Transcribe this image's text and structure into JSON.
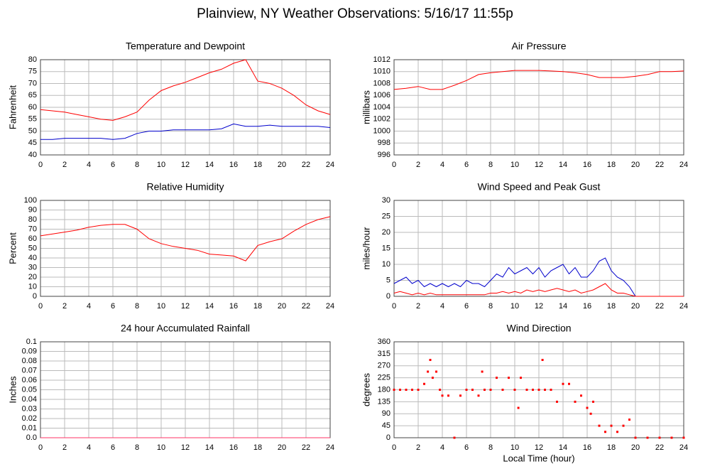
{
  "title": "Plainview, NY Weather Observations: 5/16/17 11:55p",
  "chart_data": [
    {
      "type": "line",
      "title": "Temperature and Dewpoint",
      "ylabel": "Fahrenheit",
      "x": [
        0,
        1,
        2,
        3,
        4,
        5,
        6,
        7,
        8,
        9,
        10,
        11,
        12,
        13,
        14,
        15,
        16,
        17,
        18,
        19,
        20,
        21,
        22,
        23,
        24
      ],
      "series": [
        {
          "color": "#ff0000",
          "values": [
            59,
            58.5,
            58,
            57,
            56,
            55,
            54.5,
            56,
            58,
            63,
            67,
            69,
            70.5,
            72.5,
            74.5,
            76,
            78.5,
            80,
            71,
            70,
            68,
            65,
            61,
            58.5,
            57
          ]
        },
        {
          "color": "#0000cc",
          "values": [
            46.5,
            46.5,
            47,
            47,
            47,
            47,
            46.5,
            47,
            49,
            50,
            50,
            50.5,
            50.5,
            50.5,
            50.5,
            51,
            53,
            52,
            52,
            52.5,
            52,
            52,
            52,
            52,
            51.5
          ]
        }
      ],
      "xlim": [
        0,
        24
      ],
      "xticks": [
        0,
        2,
        4,
        6,
        8,
        10,
        12,
        14,
        16,
        18,
        20,
        22,
        24
      ],
      "ylim": [
        40,
        80
      ],
      "yticks": [
        40,
        45,
        50,
        55,
        60,
        65,
        70,
        75,
        80
      ],
      "grid": true
    },
    {
      "type": "line",
      "title": "Air Pressure",
      "ylabel": "millibars",
      "x": [
        0,
        1,
        2,
        3,
        4,
        5,
        6,
        7,
        8,
        9,
        10,
        11,
        12,
        13,
        14,
        15,
        16,
        17,
        18,
        19,
        20,
        21,
        22,
        23,
        24
      ],
      "series": [
        {
          "color": "#ff0000",
          "values": [
            1007,
            1007.2,
            1007.5,
            1007,
            1007,
            1007.7,
            1008.5,
            1009.5,
            1009.8,
            1010,
            1010.2,
            1010.2,
            1010.2,
            1010.1,
            1010,
            1009.8,
            1009.5,
            1009,
            1009,
            1009,
            1009.2,
            1009.5,
            1010,
            1010,
            1010.1
          ]
        }
      ],
      "xlim": [
        0,
        24
      ],
      "xticks": [
        0,
        2,
        4,
        6,
        8,
        10,
        12,
        14,
        16,
        18,
        20,
        22,
        24
      ],
      "ylim": [
        996,
        1012
      ],
      "yticks": [
        996,
        998,
        1000,
        1002,
        1004,
        1006,
        1008,
        1010,
        1012
      ],
      "grid": true
    },
    {
      "type": "line",
      "title": "Relative Humidity",
      "ylabel": "Percent",
      "x": [
        0,
        1,
        2,
        3,
        4,
        5,
        6,
        7,
        8,
        9,
        10,
        11,
        12,
        13,
        14,
        15,
        16,
        17,
        18,
        19,
        20,
        21,
        22,
        23,
        24
      ],
      "series": [
        {
          "color": "#ff0000",
          "values": [
            63,
            65,
            67,
            69,
            72,
            74,
            75,
            75,
            70,
            60,
            55,
            52,
            50,
            48,
            44,
            43,
            42,
            37,
            53,
            57,
            60,
            68,
            75,
            80,
            83
          ]
        }
      ],
      "xlim": [
        0,
        24
      ],
      "xticks": [
        0,
        2,
        4,
        6,
        8,
        10,
        12,
        14,
        16,
        18,
        20,
        22,
        24
      ],
      "ylim": [
        0,
        100
      ],
      "yticks": [
        0,
        10,
        20,
        30,
        40,
        50,
        60,
        70,
        80,
        90,
        100
      ],
      "grid": true
    },
    {
      "type": "line",
      "title": "Wind Speed and Peak Gust",
      "ylabel": "miles/hour",
      "x": [
        0,
        0.5,
        1,
        1.5,
        2,
        2.5,
        3,
        3.5,
        4,
        4.5,
        5,
        5.5,
        6,
        6.5,
        7,
        7.5,
        8,
        8.5,
        9,
        9.5,
        10,
        10.5,
        11,
        11.5,
        12,
        12.5,
        13,
        13.5,
        14,
        14.5,
        15,
        15.5,
        16,
        16.5,
        17,
        17.5,
        18,
        18.5,
        19,
        19.5,
        20,
        20.5,
        21,
        21.5,
        22,
        22.5,
        23,
        23.5,
        24
      ],
      "series": [
        {
          "color": "#0000cc",
          "values": [
            4,
            5,
            6,
            4,
            5,
            3,
            4,
            3,
            4,
            3,
            4,
            3,
            5,
            4,
            4,
            3,
            5,
            7,
            6,
            9,
            7,
            8,
            9,
            7,
            9,
            6,
            8,
            9,
            10,
            7,
            9,
            6,
            6,
            8,
            11,
            12,
            8,
            6,
            5,
            3,
            0,
            0,
            0,
            0,
            0,
            0,
            0,
            0,
            0
          ]
        },
        {
          "color": "#ff0000",
          "values": [
            1,
            1.5,
            1,
            0.5,
            1,
            0.5,
            1,
            0.5,
            0.5,
            0.5,
            0.5,
            0.5,
            0.5,
            0.5,
            0.5,
            0.5,
            1,
            1,
            1.5,
            1,
            1.5,
            1,
            2,
            1.5,
            2,
            1.5,
            2,
            2.5,
            2,
            1.5,
            2,
            1,
            1.5,
            2,
            3,
            4,
            2,
            1,
            1,
            0.5,
            0,
            0,
            0,
            0,
            0,
            0,
            0,
            0,
            0
          ]
        }
      ],
      "xlim": [
        0,
        24
      ],
      "xticks": [
        0,
        2,
        4,
        6,
        8,
        10,
        12,
        14,
        16,
        18,
        20,
        22,
        24
      ],
      "ylim": [
        0,
        30
      ],
      "yticks": [
        0,
        5,
        10,
        15,
        20,
        25,
        30
      ],
      "grid": true
    },
    {
      "type": "line",
      "title": "24 hour Accumulated Rainfall",
      "ylabel": "Inches",
      "x": [
        0,
        24
      ],
      "series": [
        {
          "color": "#ff3366",
          "values": [
            0,
            0
          ]
        }
      ],
      "xlim": [
        0,
        24
      ],
      "xticks": [
        0,
        2,
        4,
        6,
        8,
        10,
        12,
        14,
        16,
        18,
        20,
        22,
        24
      ],
      "ylim": [
        0,
        0.1
      ],
      "yticks": [
        {
          "value": 0,
          "label": "0.0"
        },
        0.01,
        0.02,
        0.03,
        0.04,
        0.05,
        0.06,
        0.07,
        0.08,
        0.09,
        0.1
      ],
      "grid": true
    },
    {
      "type": "scatter",
      "title": "Wind Direction",
      "ylabel": "degrees",
      "xlabel": "Local Time (hour)",
      "x": [
        0,
        0.5,
        1,
        1.5,
        2,
        2.5,
        2.8,
        3,
        3.2,
        3.5,
        3.8,
        4,
        4.5,
        5,
        5.5,
        6,
        6.5,
        7,
        7.3,
        7.5,
        8,
        8.5,
        9,
        9.5,
        10,
        10.3,
        10.5,
        11,
        11.5,
        12,
        12.3,
        12.5,
        13,
        13.5,
        14,
        14.5,
        15,
        15.5,
        16,
        16.3,
        16.5,
        17,
        17.5,
        18,
        18.5,
        19,
        19.5,
        20,
        21,
        22,
        23,
        24
      ],
      "series": [
        {
          "color": "#ff0000",
          "values": [
            180,
            180,
            180,
            180,
            180,
            202,
            248,
            292,
            225,
            248,
            180,
            158,
            158,
            0,
            158,
            180,
            180,
            158,
            248,
            180,
            180,
            225,
            180,
            225,
            180,
            112,
            225,
            180,
            180,
            180,
            292,
            180,
            180,
            135,
            202,
            202,
            135,
            158,
            112,
            90,
            135,
            45,
            22,
            45,
            22,
            45,
            68,
            0,
            0,
            0,
            0,
            0
          ]
        }
      ],
      "xlim": [
        0,
        24
      ],
      "xticks": [
        0,
        2,
        4,
        6,
        8,
        10,
        12,
        14,
        16,
        18,
        20,
        22,
        24
      ],
      "ylim": [
        0,
        360
      ],
      "yticks": [
        0,
        45,
        90,
        135,
        180,
        225,
        270,
        315,
        360
      ],
      "grid": true
    }
  ]
}
